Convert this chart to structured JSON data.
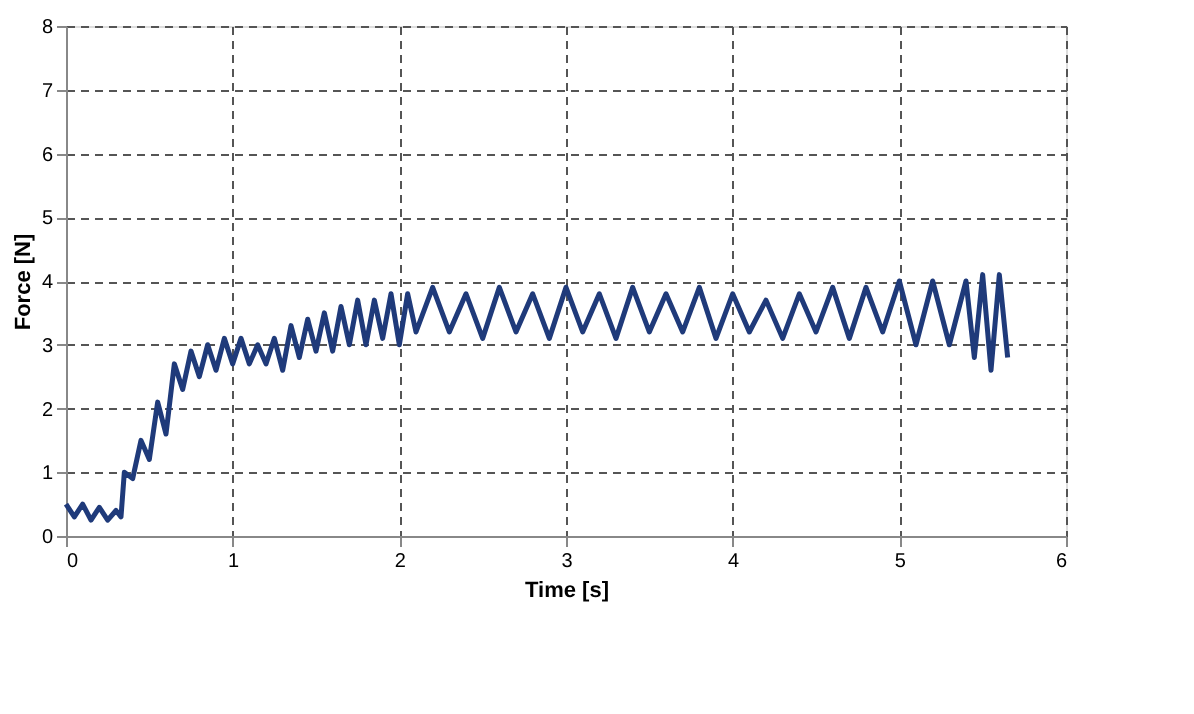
{
  "chart_data": {
    "type": "line",
    "xlabel": "Time [s]",
    "ylabel": "Force [N]",
    "xlim": [
      0,
      6
    ],
    "xticks": [
      0,
      1,
      2,
      3,
      4,
      5,
      6
    ],
    "ylim": [
      0,
      8
    ],
    "yticks": [
      0,
      1,
      2,
      3,
      4,
      5,
      6,
      7,
      8
    ],
    "grid": true,
    "line_style": "solid",
    "series": [
      {
        "color": "#1f3a7a",
        "x": [
          0.0,
          0.05,
          0.1,
          0.15,
          0.2,
          0.25,
          0.3,
          0.33,
          0.35,
          0.4,
          0.45,
          0.5,
          0.55,
          0.6,
          0.65,
          0.7,
          0.75,
          0.8,
          0.85,
          0.9,
          0.95,
          1.0,
          1.05,
          1.1,
          1.15,
          1.2,
          1.25,
          1.3,
          1.35,
          1.4,
          1.45,
          1.5,
          1.55,
          1.6,
          1.65,
          1.7,
          1.75,
          1.8,
          1.85,
          1.9,
          1.95,
          2.0,
          2.05,
          2.1,
          2.2,
          2.3,
          2.4,
          2.5,
          2.6,
          2.7,
          2.8,
          2.9,
          3.0,
          3.1,
          3.2,
          3.3,
          3.4,
          3.5,
          3.6,
          3.7,
          3.8,
          3.9,
          4.0,
          4.1,
          4.2,
          4.3,
          4.4,
          4.5,
          4.6,
          4.7,
          4.8,
          4.9,
          5.0,
          5.1,
          5.2,
          5.3,
          5.4,
          5.45,
          5.5,
          5.55,
          5.6,
          5.65
        ],
        "values": [
          0.5,
          0.3,
          0.5,
          0.25,
          0.45,
          0.25,
          0.4,
          0.3,
          1.0,
          0.9,
          1.5,
          1.2,
          2.1,
          1.6,
          2.7,
          2.3,
          2.9,
          2.5,
          3.0,
          2.6,
          3.1,
          2.7,
          3.1,
          2.7,
          3.0,
          2.7,
          3.1,
          2.6,
          3.3,
          2.8,
          3.4,
          2.9,
          3.5,
          2.9,
          3.6,
          3.0,
          3.7,
          3.0,
          3.7,
          3.1,
          3.8,
          3.0,
          3.8,
          3.2,
          3.9,
          3.2,
          3.8,
          3.1,
          3.9,
          3.2,
          3.8,
          3.1,
          3.9,
          3.2,
          3.8,
          3.1,
          3.9,
          3.2,
          3.8,
          3.2,
          3.9,
          3.1,
          3.8,
          3.2,
          3.7,
          3.1,
          3.8,
          3.2,
          3.9,
          3.1,
          3.9,
          3.2,
          4.0,
          3.0,
          4.0,
          3.0,
          4.0,
          2.8,
          4.1,
          2.6,
          4.1,
          2.8
        ]
      }
    ]
  }
}
